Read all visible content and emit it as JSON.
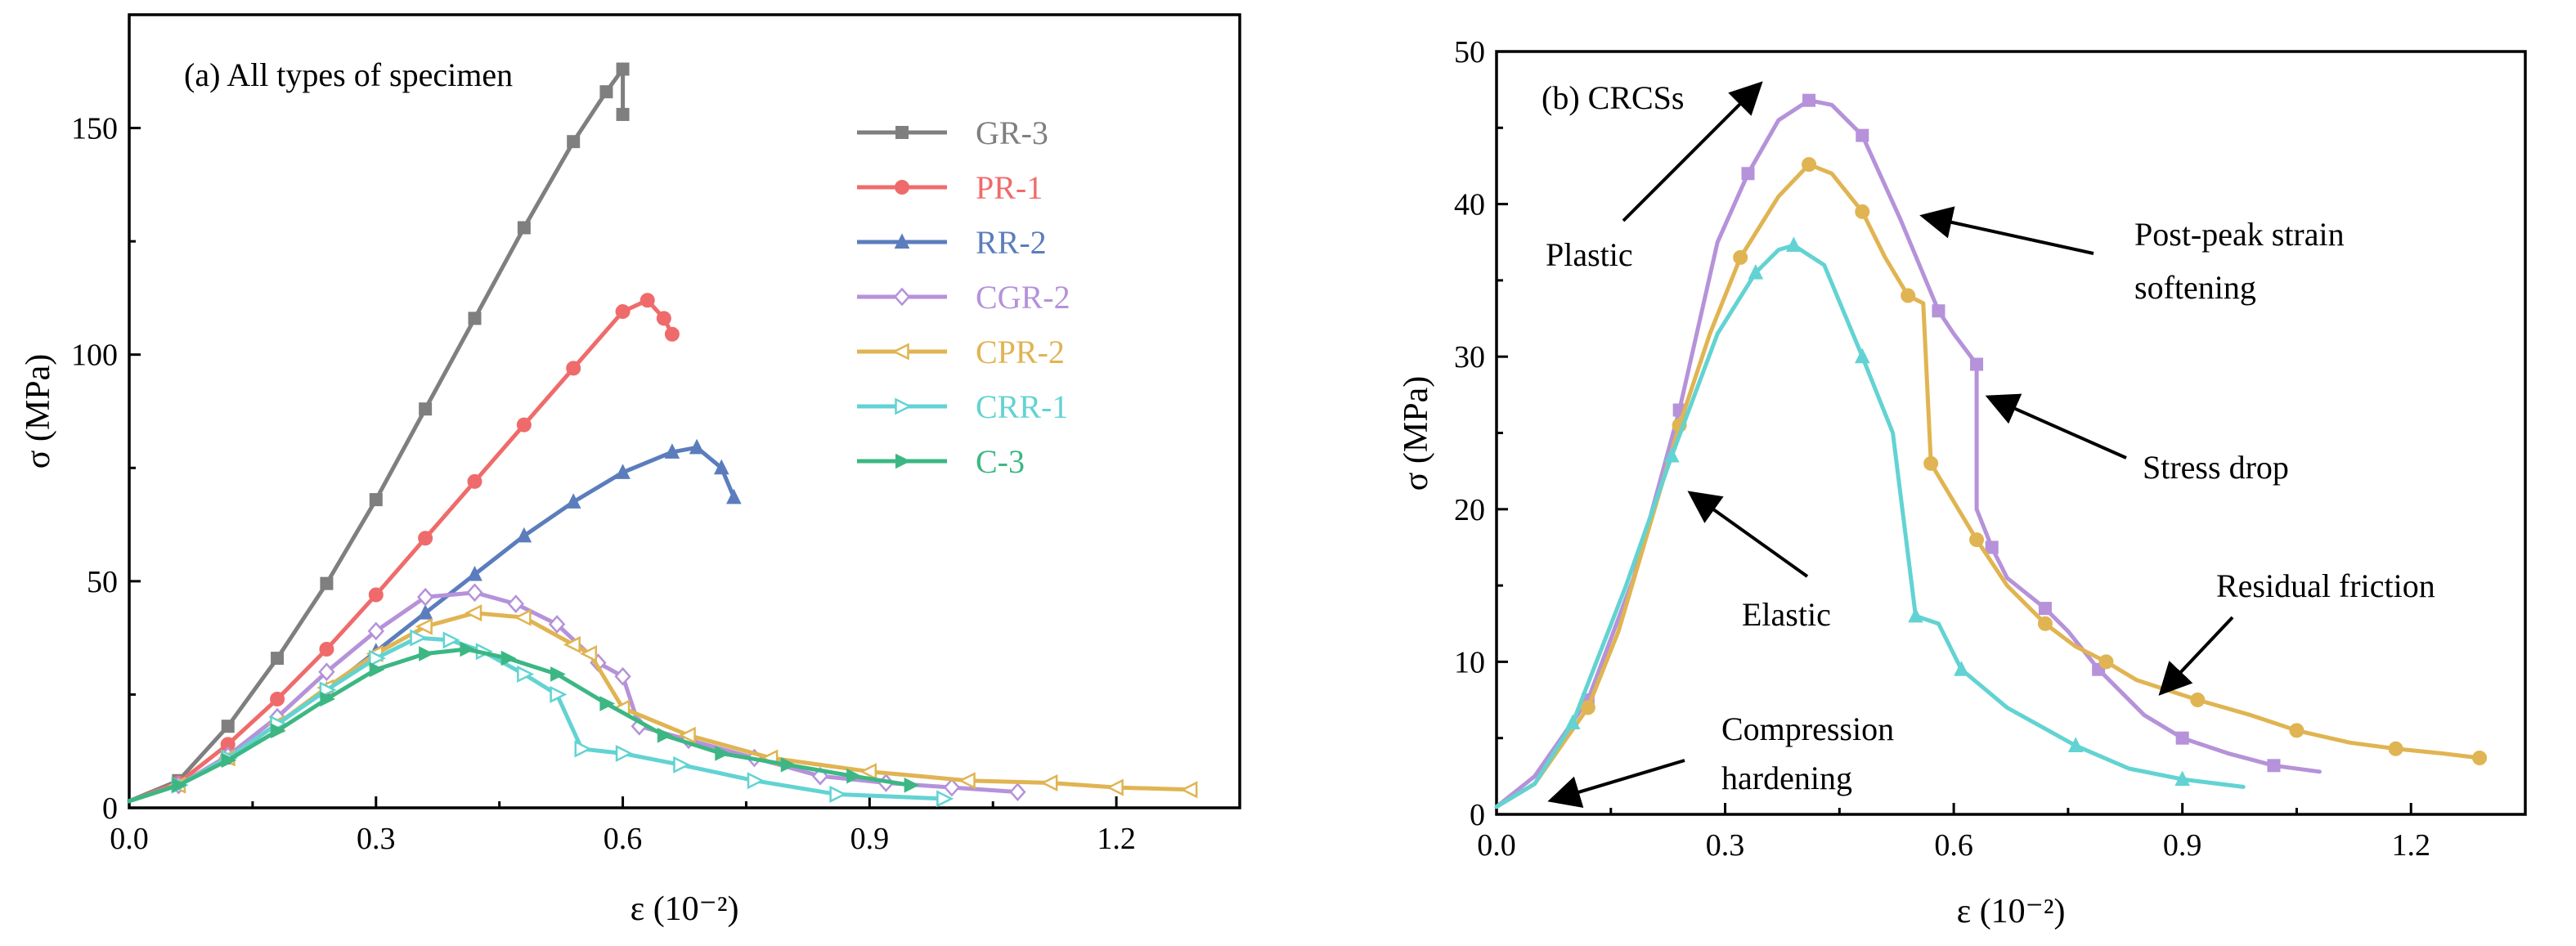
{
  "chart_data": [
    {
      "type": "line",
      "panel_label": "(a) All types of specimen",
      "xlabel": "ε (10⁻²)",
      "ylabel": "σ (MPa)",
      "xlim": [
        0,
        1.35
      ],
      "ylim": [
        0,
        175
      ],
      "x_ticks": [
        0.0,
        0.3,
        0.6,
        0.9,
        1.2
      ],
      "x_tick_labels": [
        "0.0",
        "0.3",
        "0.6",
        "0.9",
        "1.2"
      ],
      "y_ticks": [
        0,
        50,
        100,
        150
      ],
      "y_tick_labels": [
        "0",
        "50",
        "100",
        "150"
      ],
      "grid": false,
      "legend_position": "top-right",
      "series": [
        {
          "name": "GR-3",
          "color": "#7f7f7f",
          "marker": "square",
          "x": [
            0.0,
            0.06,
            0.12,
            0.18,
            0.24,
            0.3,
            0.36,
            0.42,
            0.48,
            0.54,
            0.58,
            0.6,
            0.6
          ],
          "y": [
            1.5,
            6,
            18,
            33,
            49.5,
            68,
            88,
            108,
            128,
            147,
            158,
            163,
            153
          ]
        },
        {
          "name": "PR-1",
          "color": "#ef6b6b",
          "marker": "circle",
          "x": [
            0.0,
            0.06,
            0.12,
            0.18,
            0.24,
            0.3,
            0.36,
            0.42,
            0.48,
            0.54,
            0.6,
            0.63,
            0.65,
            0.66
          ],
          "y": [
            1.5,
            5.5,
            14,
            24,
            35,
            47,
            59.5,
            72,
            84.5,
            97,
            109.5,
            112,
            108,
            104.5
          ]
        },
        {
          "name": "RR-2",
          "color": "#5b7dbd",
          "marker": "triangle-up",
          "x": [
            0.0,
            0.06,
            0.12,
            0.18,
            0.24,
            0.3,
            0.36,
            0.42,
            0.48,
            0.54,
            0.6,
            0.66,
            0.69,
            0.72,
            0.735
          ],
          "y": [
            1.5,
            5,
            11,
            18.5,
            26,
            34.5,
            43,
            51.5,
            60,
            67.5,
            74,
            78.5,
            79.5,
            75,
            68.5
          ]
        },
        {
          "name": "CGR-2",
          "color": "#b592d9",
          "marker": "diamond-open",
          "x": [
            0.0,
            0.06,
            0.12,
            0.18,
            0.24,
            0.3,
            0.36,
            0.42,
            0.47,
            0.52,
            0.57,
            0.6,
            0.62,
            0.68,
            0.76,
            0.84,
            0.92,
            1.0,
            1.08
          ],
          "y": [
            1.5,
            5,
            11.5,
            20,
            30,
            39,
            46.5,
            47.5,
            45,
            40.5,
            32,
            29,
            18,
            15,
            11,
            7,
            5.5,
            4.5,
            3.5
          ]
        },
        {
          "name": "CPR-2",
          "color": "#e0b452",
          "marker": "triangle-left-open",
          "x": [
            0.0,
            0.06,
            0.12,
            0.18,
            0.24,
            0.3,
            0.36,
            0.42,
            0.48,
            0.54,
            0.56,
            0.6,
            0.68,
            0.78,
            0.9,
            1.02,
            1.12,
            1.2,
            1.29
          ],
          "y": [
            1.5,
            5,
            11,
            18.5,
            26.5,
            34,
            40,
            43,
            42,
            36,
            34,
            22,
            16,
            11,
            8,
            6,
            5.5,
            4.5,
            4
          ]
        },
        {
          "name": "CRR-1",
          "color": "#62d3d2",
          "marker": "triangle-right-open",
          "x": [
            0.0,
            0.06,
            0.12,
            0.18,
            0.24,
            0.3,
            0.35,
            0.39,
            0.43,
            0.48,
            0.52,
            0.55,
            0.6,
            0.67,
            0.76,
            0.86,
            0.99
          ],
          "y": [
            1.5,
            5,
            11,
            18.5,
            26,
            33,
            37.5,
            37,
            34.5,
            29.5,
            25,
            13,
            12,
            9.5,
            6,
            3,
            2
          ]
        },
        {
          "name": "C-3",
          "color": "#3cb783",
          "marker": "triangle-right",
          "x": [
            0.0,
            0.06,
            0.12,
            0.18,
            0.24,
            0.3,
            0.36,
            0.41,
            0.46,
            0.52,
            0.58,
            0.65,
            0.72,
            0.8,
            0.88,
            0.95
          ],
          "y": [
            1.5,
            5,
            10.5,
            17,
            24,
            30.5,
            34,
            35,
            33,
            29.5,
            23,
            16,
            12,
            9.5,
            7,
            5
          ]
        }
      ]
    },
    {
      "type": "line",
      "panel_label": "(b) CRCSs",
      "xlabel": "ε (10⁻²)",
      "ylabel": "σ (MPa)",
      "xlim": [
        0,
        1.35
      ],
      "ylim": [
        0,
        50
      ],
      "x_ticks": [
        0.0,
        0.3,
        0.6,
        0.9,
        1.2
      ],
      "x_tick_labels": [
        "0.0",
        "0.3",
        "0.6",
        "0.9",
        "1.2"
      ],
      "y_ticks": [
        0,
        10,
        20,
        30,
        40,
        50
      ],
      "y_tick_labels": [
        "0",
        "10",
        "20",
        "30",
        "40",
        "50"
      ],
      "grid": false,
      "series": [
        {
          "color": "#b592d9",
          "marker": "square",
          "x": [
            0.0,
            0.05,
            0.12,
            0.18,
            0.24,
            0.29,
            0.33,
            0.37,
            0.41,
            0.44,
            0.48,
            0.53,
            0.58,
            0.6,
            0.63,
            0.63,
            0.65,
            0.67,
            0.72,
            0.75,
            0.79,
            0.85,
            0.9,
            0.96,
            1.02,
            1.08
          ],
          "y": [
            0.5,
            2.5,
            7.5,
            15.5,
            26.5,
            37.5,
            42,
            45.5,
            46.8,
            46.5,
            44.5,
            39,
            33,
            31.5,
            29.5,
            20,
            17.5,
            15.5,
            13.5,
            12,
            9.5,
            6.5,
            5,
            4,
            3.2,
            2.8
          ]
        },
        {
          "color": "#e0b452",
          "marker": "circle",
          "x": [
            0.0,
            0.05,
            0.12,
            0.16,
            0.24,
            0.28,
            0.32,
            0.37,
            0.41,
            0.44,
            0.48,
            0.51,
            0.54,
            0.56,
            0.57,
            0.6,
            0.63,
            0.67,
            0.72,
            0.76,
            0.8,
            0.84,
            0.92,
            0.99,
            1.05,
            1.12,
            1.18,
            1.24,
            1.29
          ],
          "y": [
            0.5,
            2,
            7,
            12,
            25.5,
            31.5,
            36.5,
            40.5,
            42.6,
            42,
            39.5,
            36.5,
            34,
            33.5,
            23,
            20.5,
            18,
            15,
            12.5,
            11,
            10,
            8.8,
            7.5,
            6.5,
            5.5,
            4.7,
            4.3,
            4,
            3.7
          ]
        },
        {
          "color": "#62d3d2",
          "marker": "triangle-up",
          "x": [
            0.0,
            0.05,
            0.1,
            0.17,
            0.23,
            0.29,
            0.34,
            0.37,
            0.39,
            0.43,
            0.48,
            0.52,
            0.55,
            0.58,
            0.61,
            0.67,
            0.76,
            0.83,
            0.9,
            0.98
          ],
          "y": [
            0.5,
            2,
            6,
            15,
            23.5,
            31.5,
            35.5,
            37,
            37.3,
            36,
            30,
            25,
            13,
            12.5,
            9.5,
            7,
            4.5,
            3,
            2.3,
            1.8
          ]
        }
      ],
      "annotations": [
        {
          "text": "Plastic"
        },
        {
          "text": "Post-peak strain"
        },
        {
          "text": "softening"
        },
        {
          "text": "Stress drop"
        },
        {
          "text": "Residual friction"
        },
        {
          "text": "Elastic"
        },
        {
          "text": "Compression"
        },
        {
          "text": "hardening"
        }
      ]
    }
  ]
}
